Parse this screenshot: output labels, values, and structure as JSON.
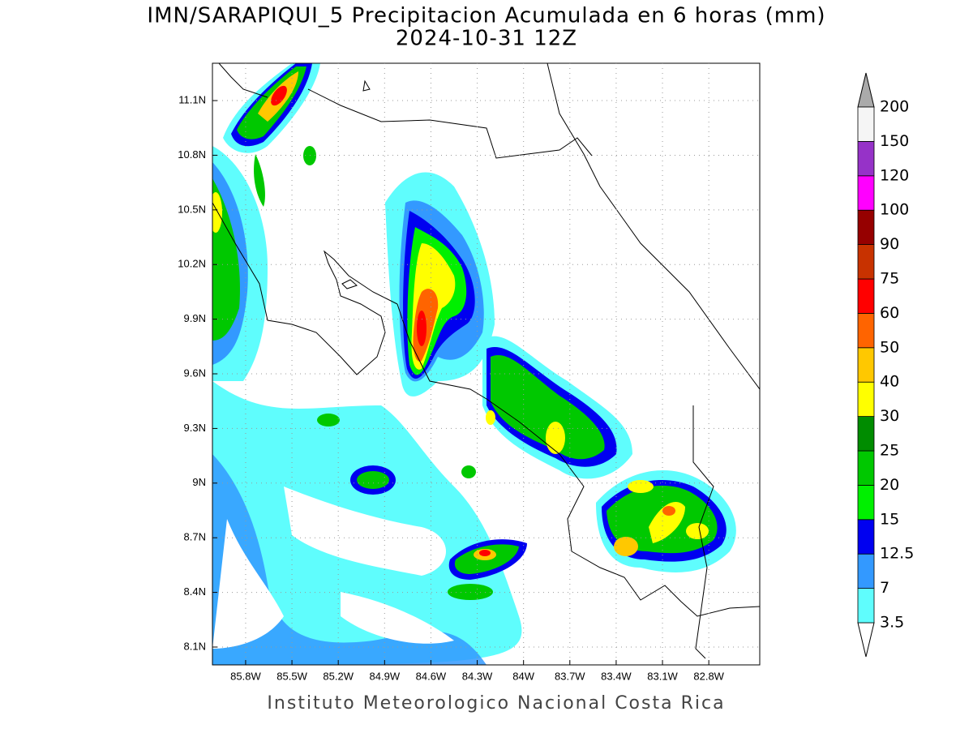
{
  "title": "IMN/SARAPIQUI_5 Precipitacion Acumulada en 6 horas (mm)",
  "subtitle": "2024-10-31 12Z",
  "footer": "Instituto Meteorologico Nacional Costa Rica",
  "map": {
    "lonlim": [
      -86.015,
      -82.47
    ],
    "latlim": [
      8.002,
      11.305
    ],
    "grid": true,
    "lon_ticks": [
      {
        "value": -85.8,
        "label": "85.8W"
      },
      {
        "value": -85.5,
        "label": "85.5W"
      },
      {
        "value": -85.2,
        "label": "85.2W"
      },
      {
        "value": -84.9,
        "label": "84.9W"
      },
      {
        "value": -84.6,
        "label": "84.6W"
      },
      {
        "value": -84.3,
        "label": "84.3W"
      },
      {
        "value": -84.0,
        "label": "84W"
      },
      {
        "value": -83.7,
        "label": "83.7W"
      },
      {
        "value": -83.4,
        "label": "83.4W"
      },
      {
        "value": -83.1,
        "label": "83.1W"
      },
      {
        "value": -82.8,
        "label": "82.8W"
      }
    ],
    "lat_ticks": [
      {
        "value": 8.1,
        "label": "8.1N"
      },
      {
        "value": 8.4,
        "label": "8.4N"
      },
      {
        "value": 8.7,
        "label": "8.7N"
      },
      {
        "value": 9.0,
        "label": "9N"
      },
      {
        "value": 9.3,
        "label": "9.3N"
      },
      {
        "value": 9.6,
        "label": "9.6N"
      },
      {
        "value": 9.9,
        "label": "9.9N"
      },
      {
        "value": 10.2,
        "label": "10.2N"
      },
      {
        "value": 10.5,
        "label": "10.5N"
      },
      {
        "value": 10.8,
        "label": "10.8N"
      },
      {
        "value": 11.1,
        "label": "11.1N"
      }
    ]
  },
  "colorbar": {
    "levels": [
      3.5,
      7,
      12.5,
      15,
      20,
      25,
      30,
      40,
      50,
      60,
      75,
      90,
      100,
      120,
      150,
      200
    ],
    "colors": [
      "#5ffdfd",
      "#3399ff",
      "#0000f0",
      "#00f000",
      "#00c800",
      "#008c00",
      "#ffff00",
      "#ffc800",
      "#ff6400",
      "#ff0000",
      "#c83200",
      "#960000",
      "#ff00ff",
      "#9632c8",
      "#f5f5f5"
    ],
    "under_color": "#ffffff",
    "over_color": "#aaaaaa"
  }
}
